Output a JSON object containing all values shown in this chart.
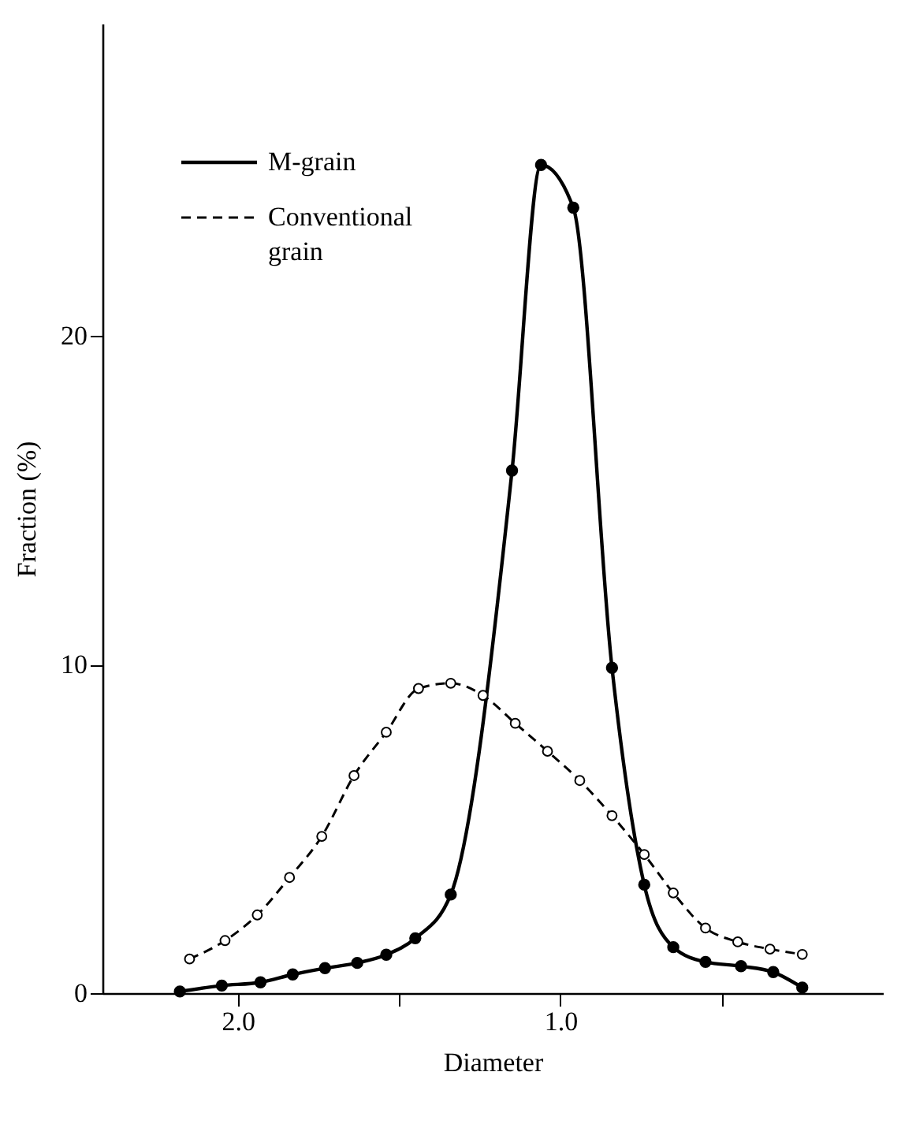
{
  "chart_data": {
    "type": "line",
    "xlabel": "Diameter",
    "ylabel": "Fraction (%)",
    "xlim": [
      2.42,
      0.0
    ],
    "ylim": [
      0,
      29.5
    ],
    "xticks": [
      {
        "value": 2.0,
        "label": "2.0"
      },
      {
        "value": 1.5,
        "label": null
      },
      {
        "value": 1.0,
        "label": "1.0"
      },
      {
        "value": 0.5,
        "label": null
      }
    ],
    "yticks": [
      0,
      10,
      20
    ],
    "grid": false,
    "legend": "top left",
    "marker": "circle",
    "series": [
      {
        "name": "M-grain",
        "color": "#000000",
        "line_style": "solid",
        "x": [
          2.18,
          2.05,
          1.93,
          1.83,
          1.73,
          1.63,
          1.54,
          1.45,
          1.34,
          1.15,
          1.06,
          0.96,
          0.84,
          0.74,
          0.65,
          0.55,
          0.44,
          0.34,
          0.25
        ],
        "values": [
          0.05,
          0.23,
          0.33,
          0.57,
          0.76,
          0.92,
          1.17,
          1.67,
          3.0,
          15.9,
          25.2,
          23.9,
          9.9,
          3.3,
          1.4,
          0.95,
          0.82,
          0.64,
          0.17
        ]
      },
      {
        "name": "Conventional grain",
        "color": "#000000",
        "line_style": "dashed",
        "x": [
          2.15,
          2.04,
          1.94,
          1.84,
          1.74,
          1.64,
          1.54,
          1.44,
          1.34,
          1.24,
          1.14,
          1.04,
          0.94,
          0.84,
          0.74,
          0.65,
          0.55,
          0.45,
          0.35,
          0.25
        ],
        "values": [
          1.04,
          1.6,
          2.38,
          3.52,
          4.77,
          6.62,
          7.94,
          9.27,
          9.43,
          9.06,
          8.21,
          7.36,
          6.47,
          5.4,
          4.22,
          3.05,
          1.98,
          1.56,
          1.34,
          1.18
        ]
      }
    ]
  }
}
